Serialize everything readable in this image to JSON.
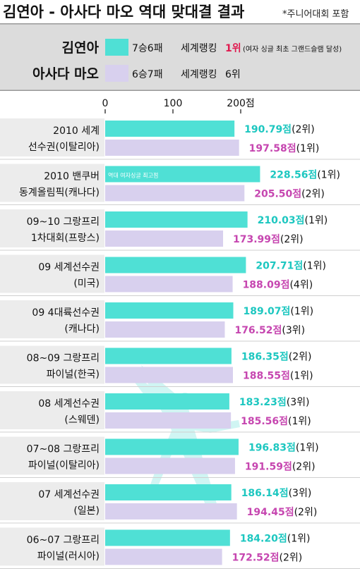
{
  "header": {
    "title": "김연아 - 아사다 마오 역대 맞대결 결과",
    "note": "*주니어대회 포함"
  },
  "legend": {
    "kim": {
      "name": "김연아",
      "record": "7승6패",
      "rank_prefix": "세계랭킹",
      "rank_value": "1위",
      "rank_note": "(여자 싱글 최초 그랜드슬램 달성)",
      "color": "#4fe0d5"
    },
    "mao": {
      "name": "아사다 마오",
      "record": "6승7패",
      "rank_prefix": "세계랭킹",
      "rank_value": "6위",
      "color": "#d8d0ee"
    }
  },
  "colors": {
    "kim_bar": "#4fe0d5",
    "mao_bar": "#d8d0ee",
    "kim_value": "#1dc7c0",
    "mao_value": "#c646b0",
    "rank_highlight": "#e01a4f",
    "header_band": "#dcdcdc",
    "label_band": "#ececec"
  },
  "chart_data": {
    "type": "bar",
    "title": "김연아 - 아사다 마오 역대 맞대결 결과",
    "xlim": [
      0,
      200
    ],
    "ticks": [
      "0",
      "100",
      "200점"
    ],
    "tick_values": [
      0,
      100,
      200
    ],
    "series": [
      {
        "name": "김연아",
        "values": [
          190.79,
          228.56,
          210.03,
          207.71,
          189.07,
          186.35,
          183.23,
          196.83,
          186.14,
          184.2
        ]
      },
      {
        "name": "아사다 마오",
        "values": [
          197.58,
          205.5,
          173.99,
          188.09,
          176.52,
          188.55,
          185.56,
          191.59,
          194.45,
          172.52
        ]
      }
    ],
    "events": [
      {
        "line1": "2010 세계",
        "line2": "선수권(이탈리아)",
        "kim": {
          "score": "190.79점",
          "place": "(2위)"
        },
        "mao": {
          "score": "197.58점",
          "place": "(1위)"
        }
      },
      {
        "line1": "2010 밴쿠버",
        "line2": "동계올림픽(캐나다)",
        "kim": {
          "score": "228.56점",
          "place": "(1위)"
        },
        "mao": {
          "score": "205.50점",
          "place": "(2위)"
        },
        "annotation": "역대 여자싱글 최고점"
      },
      {
        "line1": "09~10 그랑프리",
        "line2": "1차대회(프랑스)",
        "kim": {
          "score": "210.03점",
          "place": "(1위)"
        },
        "mao": {
          "score": "173.99점",
          "place": "(2위)"
        }
      },
      {
        "line1": "09 세계선수권",
        "line2": "(미국)",
        "kim": {
          "score": "207.71점",
          "place": "(1위)"
        },
        "mao": {
          "score": "188.09점",
          "place": "(4위)"
        }
      },
      {
        "line1": "09 4대륙선수권",
        "line2": "(캐나다)",
        "kim": {
          "score": "189.07점",
          "place": "(1위)"
        },
        "mao": {
          "score": "176.52점",
          "place": "(3위)"
        }
      },
      {
        "line1": "08~09 그랑프리",
        "line2": "파이널(한국)",
        "kim": {
          "score": "186.35점",
          "place": "(2위)"
        },
        "mao": {
          "score": "188.55점",
          "place": "(1위)"
        }
      },
      {
        "line1": "08 세계선수권",
        "line2": "(스웨덴)",
        "kim": {
          "score": "183.23점",
          "place": "(3위)"
        },
        "mao": {
          "score": "185.56점",
          "place": "(1위)"
        }
      },
      {
        "line1": "07~08 그랑프리",
        "line2": "파이널(이탈리아)",
        "kim": {
          "score": "196.83점",
          "place": "(1위)"
        },
        "mao": {
          "score": "191.59점",
          "place": "(2위)"
        }
      },
      {
        "line1": "07 세계선수권",
        "line2": "(일본)",
        "kim": {
          "score": "186.14점",
          "place": "(3위)"
        },
        "mao": {
          "score": "194.45점",
          "place": "(2위)"
        }
      },
      {
        "line1": "06~07 그랑프리",
        "line2": "파이널(러시아)",
        "kim": {
          "score": "184.20점",
          "place": "(1위)"
        },
        "mao": {
          "score": "172.52점",
          "place": "(2위)"
        }
      }
    ]
  }
}
